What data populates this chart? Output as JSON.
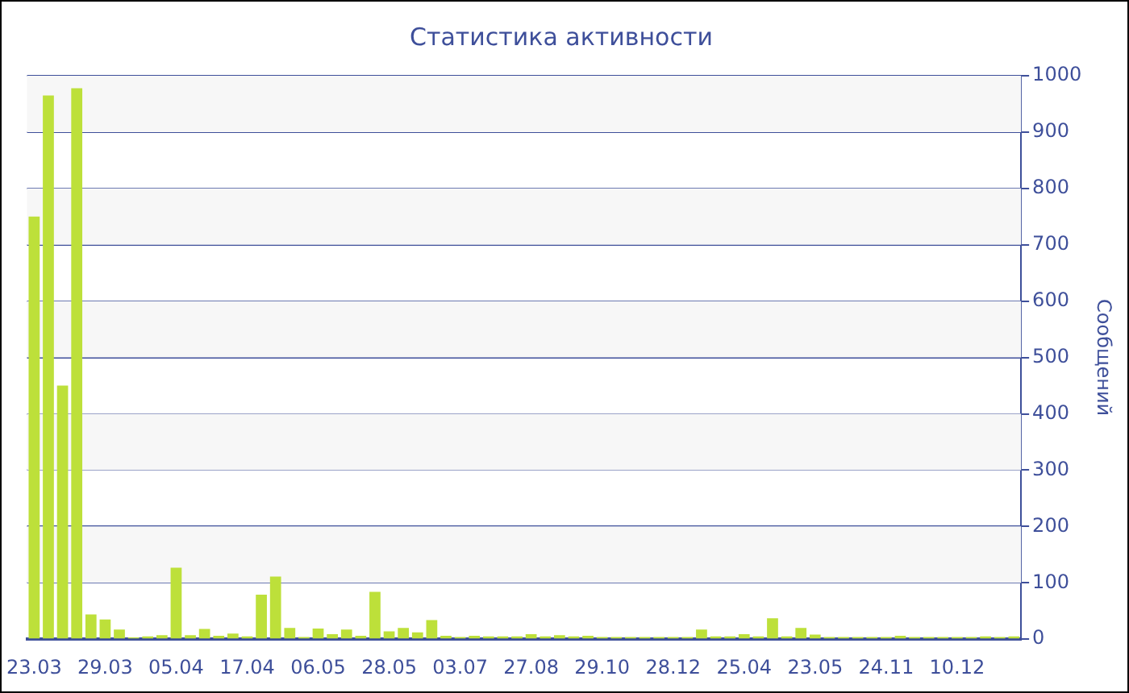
{
  "chart_data": {
    "type": "bar",
    "title": "Статистика активности",
    "ylabel": "Сообщений",
    "categories": [
      "23.03",
      null,
      null,
      null,
      null,
      "29.03",
      null,
      null,
      null,
      null,
      "05.04",
      null,
      null,
      null,
      null,
      "17.04",
      null,
      null,
      null,
      null,
      "06.05",
      null,
      null,
      null,
      null,
      "28.05",
      null,
      null,
      null,
      null,
      "03.07",
      null,
      null,
      null,
      null,
      "27.08",
      null,
      null,
      null,
      null,
      "29.10",
      null,
      null,
      null,
      null,
      "28.12",
      null,
      null,
      null,
      null,
      "25.04",
      null,
      null,
      null,
      null,
      "23.05",
      null,
      null,
      null,
      null,
      "24.11",
      null,
      null,
      null,
      null,
      "10.12",
      null,
      null,
      null,
      null
    ],
    "values": [
      750,
      965,
      450,
      978,
      44,
      35,
      17,
      3,
      5,
      7,
      127,
      7,
      18,
      6,
      10,
      5,
      79,
      111,
      20,
      4,
      19,
      9,
      17,
      6,
      84,
      14,
      20,
      12,
      34,
      6,
      4,
      6,
      5,
      5,
      5,
      9,
      5,
      7,
      5,
      6,
      4,
      4,
      4,
      4,
      4,
      4,
      4,
      17,
      5,
      5,
      9,
      5,
      37,
      5,
      20,
      8,
      4,
      4,
      4,
      4,
      4,
      6,
      4,
      4,
      4,
      4,
      4,
      5,
      4,
      5
    ],
    "color": "#bde03a",
    "ylim": [
      0,
      1000
    ],
    "yticks": [
      0,
      100,
      200,
      300,
      400,
      500,
      600,
      700,
      800,
      900,
      1000
    ],
    "grid": "y",
    "legend": false
  }
}
